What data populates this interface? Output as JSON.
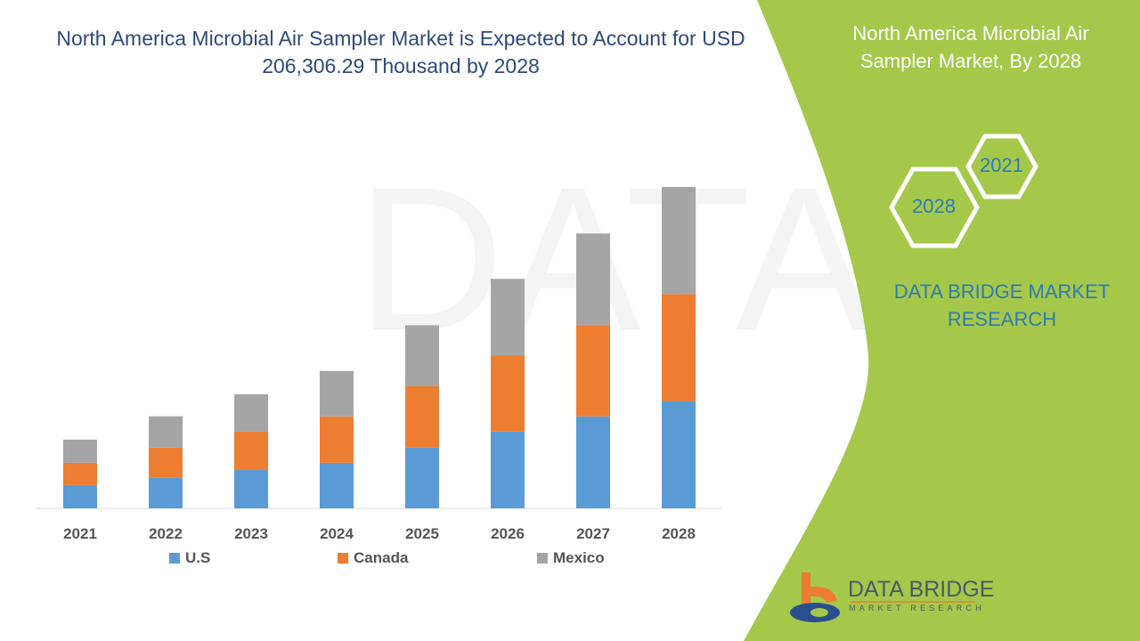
{
  "title": "North America Microbial Air Sampler Market is Expected to Account for USD 206,306.29 Thousand by 2028",
  "side_panel": {
    "title": "North America Microbial Air Sampler Market, By 2028",
    "hex_years": [
      "2021",
      "2028"
    ],
    "brand": "DATA BRIDGE MARKET RESEARCH",
    "panel_color": "#a5c84a"
  },
  "logo": {
    "name": "DATA BRIDGE",
    "tagline": "MARKET RESEARCH"
  },
  "chart_data": {
    "type": "bar",
    "stacked": true,
    "title": "North America Microbial Air Sampler Market is Expected to Account for USD 206,306.29 Thousand by 2028",
    "xlabel": "",
    "ylabel": "",
    "ylim": [
      0,
      240000
    ],
    "grid": false,
    "legend_position": "bottom",
    "categories": [
      "2021",
      "2022",
      "2023",
      "2024",
      "2025",
      "2026",
      "2027",
      "2028"
    ],
    "series": [
      {
        "name": "U.S",
        "color": "#5b9bd5",
        "values": [
          14900,
          19500,
          24600,
          29200,
          39000,
          49300,
          59000,
          68800
        ]
      },
      {
        "name": "Canada",
        "color": "#ed7d31",
        "values": [
          14300,
          19500,
          24600,
          29800,
          39500,
          48700,
          58400,
          68700
        ]
      },
      {
        "name": "Mexico",
        "color": "#a5a5a5",
        "values": [
          14900,
          20100,
          24100,
          29200,
          39000,
          49300,
          59000,
          68800
        ]
      }
    ]
  }
}
